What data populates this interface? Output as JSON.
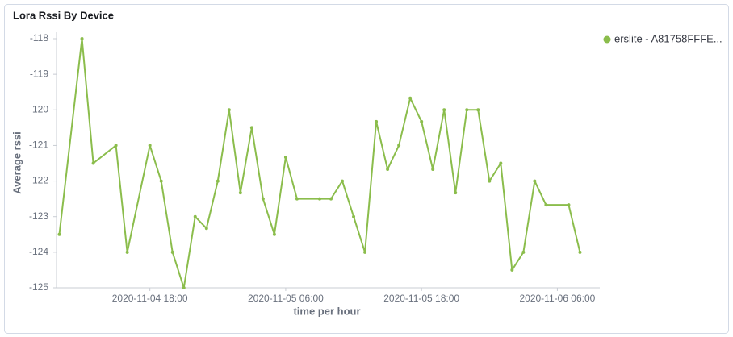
{
  "chart_data": {
    "type": "line",
    "title": "Lora Rssi By Device",
    "x_label": "time per hour",
    "y_label": "Average rssi",
    "x": [
      "2020-11-04 10:00",
      "2020-11-04 12:00",
      "2020-11-04 13:00",
      "2020-11-04 15:00",
      "2020-11-04 16:00",
      "2020-11-04 18:00",
      "2020-11-04 19:00",
      "2020-11-04 20:00",
      "2020-11-04 21:00",
      "2020-11-04 22:00",
      "2020-11-04 23:00",
      "2020-11-05 00:00",
      "2020-11-05 01:00",
      "2020-11-05 02:00",
      "2020-11-05 03:00",
      "2020-11-05 04:00",
      "2020-11-05 05:00",
      "2020-11-05 06:00",
      "2020-11-05 07:00",
      "2020-11-05 09:00",
      "2020-11-05 10:00",
      "2020-11-05 11:00",
      "2020-11-05 12:00",
      "2020-11-05 13:00",
      "2020-11-05 14:00",
      "2020-11-05 15:00",
      "2020-11-05 16:00",
      "2020-11-05 17:00",
      "2020-11-05 18:00",
      "2020-11-05 19:00",
      "2020-11-05 20:00",
      "2020-11-05 21:00",
      "2020-11-05 22:00",
      "2020-11-05 23:00",
      "2020-11-06 00:00",
      "2020-11-06 01:00",
      "2020-11-06 02:00",
      "2020-11-06 03:00",
      "2020-11-06 04:00",
      "2020-11-06 05:00",
      "2020-11-06 07:00",
      "2020-11-06 08:00"
    ],
    "series": [
      {
        "name": "erslite - A81758FFFE...",
        "color": "#8bbd4c",
        "values": [
          -123.5,
          -118,
          -121.5,
          -121,
          -124,
          -121,
          -122,
          -124,
          -125,
          -123,
          -123.33,
          -122,
          -120,
          -122.33,
          -120.5,
          -122.5,
          -123.5,
          -121.33,
          -122.5,
          -122.5,
          -122.5,
          -122,
          -123,
          -124,
          -120.33,
          -121.67,
          -121,
          -119.67,
          -120.33,
          -121.67,
          -120,
          -122.33,
          -120,
          -120,
          -122,
          -121.5,
          -124.5,
          -124,
          -122,
          -122.67,
          -122.67,
          -124
        ]
      }
    ],
    "xlim": [
      "2020-11-04 09:45",
      "2020-11-06 09:45"
    ],
    "xticks": [
      "2020-11-04 18:00",
      "2020-11-05 06:00",
      "2020-11-05 18:00",
      "2020-11-06 06:00"
    ],
    "ylim": [
      -125,
      -118
    ],
    "yticks": [
      -125,
      -124,
      -123,
      -122,
      -121,
      -120,
      -119,
      -118
    ],
    "grid": false,
    "legend": "top-right"
  }
}
